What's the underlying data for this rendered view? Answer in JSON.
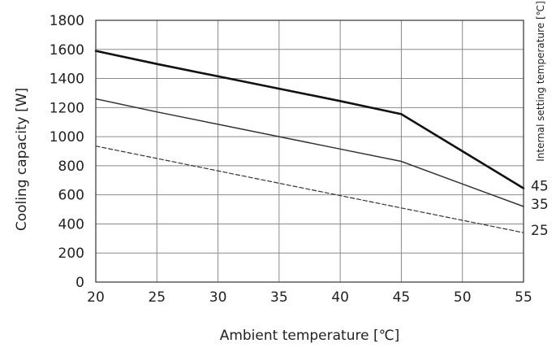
{
  "chart_data": {
    "type": "line",
    "xlabel": "Ambient temperature [℃]",
    "ylabel": "Cooling capacity [W]",
    "right_axis_label": "Internal setting temperature [℃]",
    "xlim": [
      20,
      55
    ],
    "ylim": [
      0,
      1800
    ],
    "x_ticks": [
      20,
      25,
      30,
      35,
      40,
      45,
      50,
      55
    ],
    "y_ticks": [
      0,
      200,
      400,
      600,
      800,
      1000,
      1200,
      1400,
      1600,
      1800
    ],
    "grid": true,
    "series": [
      {
        "name": "45",
        "style": "thick-solid",
        "color": "#111111",
        "x": [
          20,
          25,
          30,
          35,
          40,
          45,
          50,
          55
        ],
        "y": [
          1590,
          1500,
          1415,
          1330,
          1245,
          1155,
          900,
          645
        ]
      },
      {
        "name": "35",
        "style": "thin-solid",
        "color": "#333333",
        "x": [
          20,
          25,
          30,
          35,
          40,
          45,
          50,
          55
        ],
        "y": [
          1260,
          1170,
          1085,
          1000,
          915,
          830,
          675,
          520
        ]
      },
      {
        "name": "25",
        "style": "dashed",
        "color": "#333333",
        "x": [
          20,
          25,
          30,
          35,
          40,
          45,
          50,
          55
        ],
        "y": [
          935,
          850,
          765,
          680,
          595,
          510,
          425,
          340
        ]
      }
    ]
  }
}
